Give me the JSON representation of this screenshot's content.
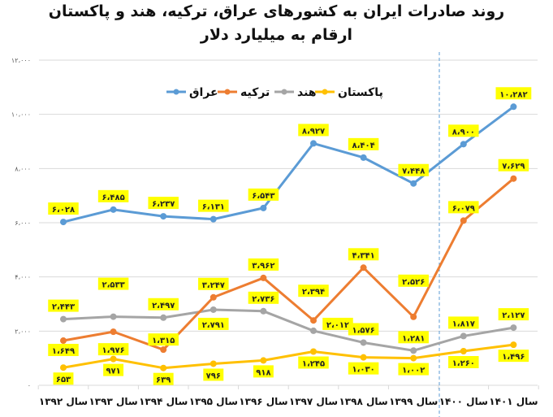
{
  "header": {
    "title": "روند صادرات ایران به کشورهای عراق، ترکیه، هند و پاکستان",
    "subtitle": "ارقام به میلیارد دلار"
  },
  "colors": {
    "iraq": "#5B9BD5",
    "turkey": "#ED7D31",
    "india": "#A5A5A5",
    "pakistan": "#FFC000",
    "label_bg": "#FFFF00",
    "grid": "#D9D9D9",
    "divider": "#5B9BD5"
  },
  "chart_data": {
    "type": "line",
    "title": "روند صادرات ایران به کشورهای عراق، ترکیه، هند و پاکستان",
    "subtitle": "ارقام به میلیارد دلار",
    "xlabel": "",
    "ylabel": "",
    "categories": [
      "سال ۱۳۹۲",
      "سال ۱۳۹۳",
      "سال ۱۳۹۴",
      "سال ۱۳۹۵",
      "سال ۱۳۹۶",
      "سال ۱۳۹۷",
      "سال ۱۳۹۸",
      "سال ۱۳۹۹",
      "سال ۱۴۰۰",
      "سال ۱۴۰۱"
    ],
    "series": [
      {
        "name": "عراق",
        "key": "iraq",
        "values": [
          6028,
          6485,
          6237,
          6131,
          6543,
          8927,
          8404,
          7448,
          8900,
          10282
        ],
        "labels": [
          "۶،۰۲۸",
          "۶،۴۸۵",
          "۶،۲۳۷",
          "۶،۱۳۱",
          "۶،۵۴۳",
          "۸،۹۲۷",
          "۸،۴۰۴",
          "۷،۴۴۸",
          "۸،۹۰۰",
          "۱۰،۲۸۲"
        ]
      },
      {
        "name": "ترکیه",
        "key": "turkey",
        "values": [
          1649,
          1976,
          1315,
          3247,
          3962,
          2394,
          4341,
          2526,
          6079,
          7629
        ],
        "labels": [
          "۱،۶۴۹",
          "۱،۹۷۶",
          "۱،۳۱۵",
          "۳،۲۴۷",
          "۳،۹۶۲",
          "۲،۳۹۴",
          "۴،۳۴۱",
          "۲،۵۲۶",
          "۶،۰۷۹",
          "۷،۶۲۹"
        ]
      },
      {
        "name": "هند",
        "key": "india",
        "values": [
          2443,
          2533,
          2497,
          2791,
          2736,
          2012,
          1576,
          1281,
          1817,
          2127
        ],
        "labels": [
          "۲،۴۴۳",
          "۲،۵۳۳",
          "۲،۴۹۷",
          "۲،۷۹۱",
          "۲،۷۳۶",
          "۲،۰۱۲",
          "۱،۵۷۶",
          "۱،۲۸۱",
          "۱،۸۱۷",
          "۲،۱۲۷"
        ]
      },
      {
        "name": "پاکستان",
        "key": "pakistan",
        "values": [
          653,
          971,
          639,
          796,
          918,
          1245,
          1030,
          1002,
          1260,
          1496
        ],
        "labels": [
          "۶۵۳",
          "۹۷۱",
          "۶۳۹",
          "۷۹۶",
          "۹۱۸",
          "۱،۲۴۵",
          "۱،۰۳۰",
          "۱،۰۰۲",
          "۱،۲۶۰",
          "۱،۴۹۶"
        ]
      }
    ],
    "yticks": [
      0,
      2000,
      4000,
      6000,
      8000,
      10000,
      12000
    ],
    "ytick_labels": [
      "۰",
      "۲،۰۰۰",
      "۴،۰۰۰",
      "۶،۰۰۰",
      "۸،۰۰۰",
      "۱۰،۰۰۰",
      "۱۲،۰۰۰"
    ],
    "ylim": [
      0,
      12000
    ],
    "grid": true,
    "legend_position": "top-center",
    "legend_order": [
      "پاکستان",
      "هند",
      "ترکیه",
      "عراق"
    ],
    "annotations": [
      "dashed vertical divider between سال ۱۳۹۹ and سال ۱۴۰۰"
    ]
  }
}
